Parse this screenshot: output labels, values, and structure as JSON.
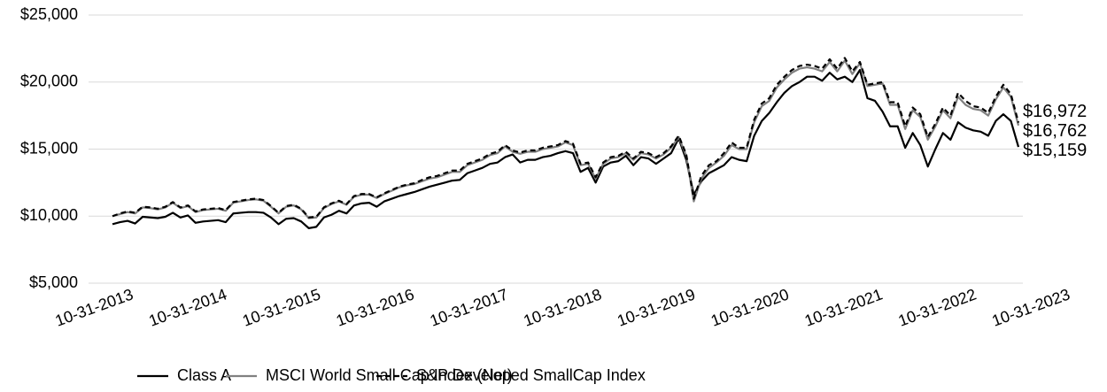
{
  "chart_data": {
    "type": "line",
    "categories": [
      "10-31-2013",
      null,
      null,
      null,
      null,
      null,
      null,
      null,
      null,
      null,
      null,
      null,
      "10-31-2014",
      null,
      null,
      null,
      null,
      null,
      null,
      null,
      null,
      null,
      null,
      null,
      "10-31-2015",
      null,
      null,
      null,
      null,
      null,
      null,
      null,
      null,
      null,
      null,
      null,
      "10-31-2016",
      null,
      null,
      null,
      null,
      null,
      null,
      null,
      null,
      null,
      null,
      null,
      "10-31-2017",
      null,
      null,
      null,
      null,
      null,
      null,
      null,
      null,
      null,
      null,
      null,
      "10-31-2018",
      null,
      null,
      null,
      null,
      null,
      null,
      null,
      null,
      null,
      null,
      null,
      "10-31-2019",
      null,
      null,
      null,
      null,
      null,
      null,
      null,
      null,
      null,
      null,
      null,
      "10-31-2020",
      null,
      null,
      null,
      null,
      null,
      null,
      null,
      null,
      null,
      null,
      null,
      "10-31-2021",
      null,
      null,
      null,
      null,
      null,
      null,
      null,
      null,
      null,
      null,
      null,
      "10-31-2022",
      null,
      null,
      null,
      null,
      null,
      null,
      null,
      null,
      null,
      null,
      null,
      "10-31-2023"
    ],
    "series": [
      {
        "name": "Class A",
        "color": "#000000",
        "dash": false,
        "values": [
          9400,
          9550,
          9650,
          9450,
          9950,
          9900,
          9850,
          9950,
          10250,
          9900,
          10050,
          9500,
          9600,
          9650,
          9700,
          9550,
          10200,
          10250,
          10300,
          10300,
          10250,
          9900,
          9400,
          9800,
          9850,
          9600,
          9100,
          9200,
          9900,
          10100,
          10400,
          10200,
          10800,
          10950,
          11000,
          10700,
          11100,
          11300,
          11500,
          11650,
          11800,
          12000,
          12200,
          12350,
          12500,
          12650,
          12700,
          13200,
          13400,
          13600,
          13900,
          14000,
          14400,
          14600,
          14000,
          14200,
          14200,
          14400,
          14500,
          14700,
          14850,
          14700,
          13300,
          13600,
          12500,
          13700,
          14000,
          14100,
          14500,
          13800,
          14400,
          14300,
          13900,
          14300,
          14700,
          15800,
          14200,
          11600,
          12600,
          13200,
          13500,
          13800,
          14400,
          14200,
          14100,
          16000,
          17100,
          17700,
          18500,
          19200,
          19700,
          20000,
          20400,
          20400,
          20100,
          20700,
          20200,
          20400,
          20000,
          20900,
          18800,
          18600,
          17800,
          16700,
          16700,
          15100,
          16200,
          15300,
          13700,
          15000,
          16200,
          15700,
          17000,
          16600,
          16400,
          16300,
          16000,
          17100,
          17600,
          17100,
          15159
        ],
        "value_labels": [
          null,
          null,
          null,
          null,
          null,
          null,
          null,
          null,
          null,
          null,
          null,
          null,
          null,
          null,
          null,
          null,
          null,
          null,
          null,
          null,
          null,
          null,
          null,
          null,
          null,
          null,
          null,
          null,
          null,
          null,
          null,
          null,
          null,
          null,
          null,
          null,
          null,
          null,
          null,
          null,
          null,
          null,
          null,
          null,
          null,
          null,
          null,
          null,
          null,
          null,
          null,
          null,
          null,
          null,
          null,
          null,
          null,
          null,
          null,
          null,
          null,
          null,
          null,
          null,
          null,
          null,
          null,
          null,
          null,
          null,
          null,
          null,
          null,
          null,
          null,
          null,
          null,
          null,
          null,
          null,
          null,
          null,
          null,
          null,
          null,
          null,
          null,
          null,
          null,
          null,
          null,
          null,
          null,
          null,
          null,
          null,
          null,
          null,
          null,
          null,
          null,
          null,
          null,
          null,
          null,
          null,
          null,
          null,
          null,
          null,
          null,
          null,
          null,
          null,
          null,
          null,
          null,
          null,
          null,
          null,
          "$15,159"
        ]
      },
      {
        "name": "MSCI World Small Cap Index (Net)",
        "color": "#808080",
        "dash": false,
        "values": [
          10000,
          10150,
          10300,
          10200,
          10650,
          10600,
          10500,
          10650,
          11000,
          10600,
          10750,
          10300,
          10450,
          10500,
          10550,
          10400,
          11000,
          11100,
          11200,
          11250,
          11150,
          10700,
          10200,
          10700,
          10800,
          10500,
          9850,
          9900,
          10600,
          10900,
          11100,
          10850,
          11450,
          11600,
          11600,
          11350,
          11650,
          11900,
          12150,
          12300,
          12400,
          12600,
          12800,
          12900,
          13100,
          13300,
          13300,
          13800,
          14000,
          14200,
          14550,
          14700,
          15200,
          14800,
          14650,
          14800,
          14800,
          15000,
          15100,
          15200,
          15500,
          15300,
          13800,
          13900,
          12800,
          13900,
          14300,
          14400,
          14700,
          14200,
          14700,
          14600,
          14300,
          14600,
          15100,
          15900,
          14500,
          11100,
          12800,
          13600,
          14000,
          14500,
          15300,
          15000,
          15000,
          17000,
          18200,
          18600,
          19600,
          20200,
          20700,
          21000,
          21100,
          21000,
          20800,
          21500,
          20800,
          21600,
          20600,
          21400,
          19700,
          19800,
          19900,
          18300,
          18300,
          16500,
          17900,
          17400,
          15700,
          16700,
          17900,
          17300,
          18900,
          18300,
          18000,
          17900,
          17500,
          18700,
          19600,
          18900,
          16762
        ],
        "value_labels": [
          null,
          null,
          null,
          null,
          null,
          null,
          null,
          null,
          null,
          null,
          null,
          null,
          null,
          null,
          null,
          null,
          null,
          null,
          null,
          null,
          null,
          null,
          null,
          null,
          null,
          null,
          null,
          null,
          null,
          null,
          null,
          null,
          null,
          null,
          null,
          null,
          null,
          null,
          null,
          null,
          null,
          null,
          null,
          null,
          null,
          null,
          null,
          null,
          null,
          null,
          null,
          null,
          null,
          null,
          null,
          null,
          null,
          null,
          null,
          null,
          null,
          null,
          null,
          null,
          null,
          null,
          null,
          null,
          null,
          null,
          null,
          null,
          null,
          null,
          null,
          null,
          null,
          null,
          null,
          null,
          null,
          null,
          null,
          null,
          null,
          null,
          null,
          null,
          null,
          null,
          null,
          null,
          null,
          null,
          null,
          null,
          null,
          null,
          null,
          null,
          null,
          null,
          null,
          null,
          null,
          null,
          null,
          null,
          null,
          null,
          null,
          null,
          null,
          null,
          null,
          null,
          null,
          null,
          null,
          null,
          "$16,762"
        ]
      },
      {
        "name": "S&P Developed SmallCap Index",
        "color": "#000000",
        "dash": true,
        "values": [
          10000,
          10200,
          10350,
          10250,
          10700,
          10650,
          10550,
          10700,
          11050,
          10650,
          10800,
          10350,
          10500,
          10550,
          10600,
          10450,
          11050,
          11150,
          11250,
          11300,
          11200,
          10750,
          10250,
          10750,
          10850,
          10550,
          9900,
          9950,
          10650,
          10950,
          11150,
          10900,
          11500,
          11650,
          11650,
          11400,
          11700,
          11950,
          12200,
          12350,
          12450,
          12700,
          12900,
          13000,
          13200,
          13400,
          13400,
          13900,
          14100,
          14300,
          14650,
          14800,
          15300,
          14900,
          14750,
          14900,
          14900,
          15100,
          15200,
          15300,
          15600,
          15400,
          13900,
          14000,
          12900,
          14000,
          14400,
          14500,
          14800,
          14300,
          14800,
          14700,
          14400,
          14700,
          15200,
          16000,
          14600,
          11300,
          13000,
          13800,
          14100,
          14700,
          15500,
          15100,
          15100,
          17200,
          18400,
          18800,
          19800,
          20400,
          20900,
          21200,
          21300,
          21200,
          21000,
          21700,
          21000,
          21800,
          20800,
          21500,
          19800,
          19900,
          20000,
          18500,
          18500,
          16700,
          18100,
          17600,
          15900,
          16900,
          18100,
          17500,
          19200,
          18600,
          18200,
          18100,
          17700,
          18900,
          19800,
          19100,
          16972
        ],
        "value_labels": [
          null,
          null,
          null,
          null,
          null,
          null,
          null,
          null,
          null,
          null,
          null,
          null,
          null,
          null,
          null,
          null,
          null,
          null,
          null,
          null,
          null,
          null,
          null,
          null,
          null,
          null,
          null,
          null,
          null,
          null,
          null,
          null,
          null,
          null,
          null,
          null,
          null,
          null,
          null,
          null,
          null,
          null,
          null,
          null,
          null,
          null,
          null,
          null,
          null,
          null,
          null,
          null,
          null,
          null,
          null,
          null,
          null,
          null,
          null,
          null,
          null,
          null,
          null,
          null,
          null,
          null,
          null,
          null,
          null,
          null,
          null,
          null,
          null,
          null,
          null,
          null,
          null,
          null,
          null,
          null,
          null,
          null,
          null,
          null,
          null,
          null,
          null,
          null,
          null,
          null,
          null,
          null,
          null,
          null,
          null,
          null,
          null,
          null,
          null,
          null,
          null,
          null,
          null,
          null,
          null,
          null,
          null,
          null,
          null,
          null,
          null,
          null,
          null,
          null,
          null,
          null,
          null,
          null,
          null,
          null,
          "$16,972"
        ]
      }
    ],
    "ylim": [
      5000,
      25000
    ],
    "yticks": [
      {
        "value": 5000,
        "label": "$5,000"
      },
      {
        "value": 10000,
        "label": "$10,000"
      },
      {
        "value": 15000,
        "label": "$15,000"
      },
      {
        "value": 20000,
        "label": "$20,000"
      },
      {
        "value": 25000,
        "label": "$25,000"
      }
    ],
    "grid": true,
    "legend": "bottom"
  }
}
